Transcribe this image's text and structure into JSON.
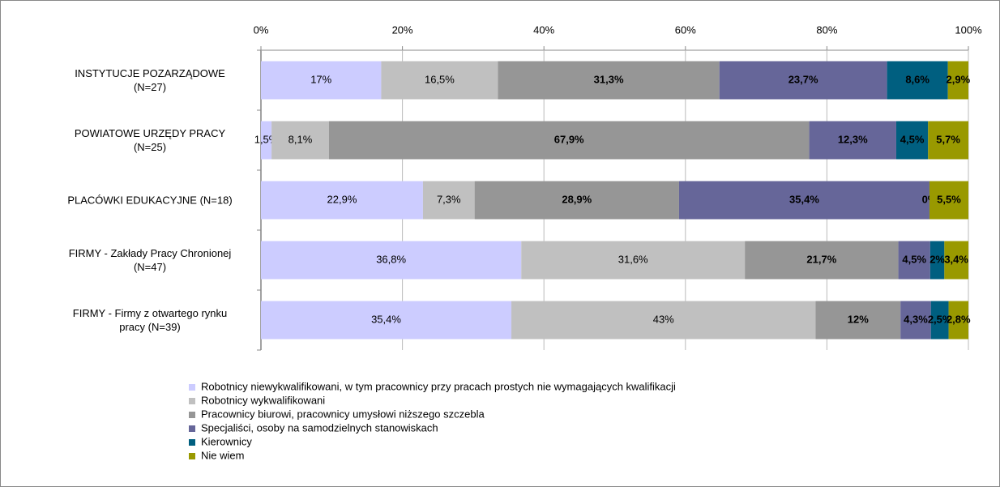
{
  "chart_data": {
    "type": "stacked_bar_horizontal",
    "categories": [
      "INSTYTUCJE POZARZĄDOWE\n(N=27)",
      "POWIATOWE URZĘDY PRACY\n(N=25)",
      "PLACÓWKI EDUKACYJNE (N=18)",
      "FIRMY - Zakłady Pracy Chronionej\n(N=47)",
      "FIRMY - Firmy z otwartego rynku\npracy (N=39)"
    ],
    "series": [
      {
        "name": "Robotnicy niewykwalifikowani, w tym pracownicy przy pracach prostych nie wymagających kwalifikacji",
        "color": "#ccccff",
        "values": [
          17,
          1.5,
          22.9,
          36.8,
          35.4
        ],
        "value_labels": [
          "17%",
          "1,5%",
          "22,9%",
          "36,8%",
          "35,4%"
        ]
      },
      {
        "name": "Robotnicy wykwalifikowani",
        "color": "#c0c0c0",
        "values": [
          16.5,
          8.1,
          7.3,
          31.6,
          43
        ],
        "value_labels": [
          "16,5%",
          "8,1%",
          "7,3%",
          "31,6%",
          "43%"
        ]
      },
      {
        "name": "Pracownicy biurowi, pracownicy umysłowi niższego szczebla",
        "color": "#969696",
        "values": [
          31.3,
          67.9,
          28.9,
          21.7,
          12
        ],
        "value_labels": [
          "31,3%",
          "67,9%",
          "28,9%",
          "21,7%",
          "12%"
        ]
      },
      {
        "name": "Specjaliści, osoby na samodzielnych stanowiskach",
        "color": "#666699",
        "values": [
          23.7,
          12.3,
          35.4,
          4.5,
          4.3
        ],
        "value_labels": [
          "23,7%",
          "12,3%",
          "35,4%",
          "4,5%",
          "4,3%"
        ]
      },
      {
        "name": "Kierownicy",
        "color": "#005f80",
        "values": [
          8.6,
          4.5,
          0,
          2,
          2.5
        ],
        "value_labels": [
          "8,6%",
          "4,5%",
          "0%",
          "2%",
          "2,5%"
        ]
      },
      {
        "name": "Nie wiem",
        "color": "#999900",
        "values": [
          2.9,
          5.7,
          5.5,
          3.4,
          2.8
        ],
        "value_labels": [
          "2,9%",
          "5,7%",
          "5,5%",
          "3,4%",
          "2,8%"
        ]
      }
    ],
    "xlim": [
      0,
      100
    ],
    "xticks": [
      {
        "value": 0,
        "label": "0%"
      },
      {
        "value": 20,
        "label": "20%"
      },
      {
        "value": 40,
        "label": "40%"
      },
      {
        "value": 60,
        "label": "60%"
      },
      {
        "value": 80,
        "label": "80%"
      },
      {
        "value": 100,
        "label": "100%"
      }
    ]
  }
}
